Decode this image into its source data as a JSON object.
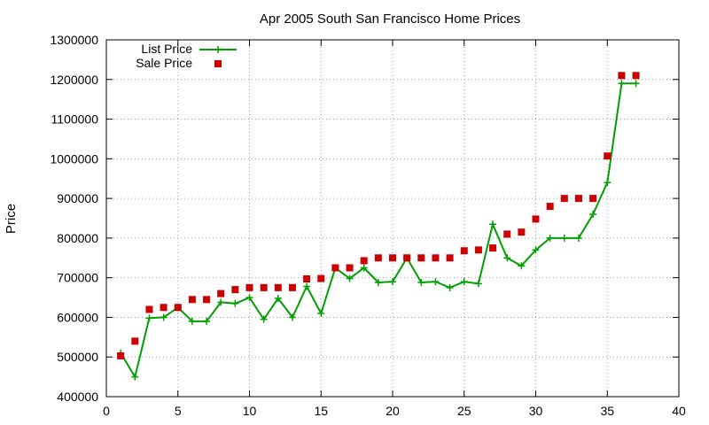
{
  "chart_data": {
    "type": "line",
    "title": "Apr 2005 South San Francisco Home Prices",
    "xlabel": "",
    "ylabel": "Price",
    "xlim": [
      0,
      40
    ],
    "ylim": [
      400000,
      1300000
    ],
    "xticks": [
      "0",
      "5",
      "10",
      "15",
      "20",
      "25",
      "30",
      "35",
      "40"
    ],
    "yticks": [
      "400000",
      "500000",
      "600000",
      "700000",
      "800000",
      "900000",
      "1000000",
      "1100000",
      "1200000",
      "1300000"
    ],
    "grid": true,
    "legend_position": "top-left",
    "series": [
      {
        "name": "List Price",
        "style": "line-with-plus-markers",
        "color": "#00a000",
        "x": [
          1,
          2,
          3,
          4,
          5,
          6,
          7,
          8,
          9,
          10,
          11,
          12,
          13,
          14,
          15,
          16,
          17,
          18,
          19,
          20,
          21,
          22,
          23,
          24,
          25,
          26,
          27,
          28,
          29,
          30,
          31,
          32,
          33,
          34,
          35,
          36,
          37
        ],
        "y": [
          510000,
          450000,
          598000,
          600000,
          625000,
          590000,
          590000,
          638000,
          635000,
          650000,
          595000,
          648000,
          600000,
          678000,
          610000,
          725000,
          698000,
          725000,
          688000,
          690000,
          750000,
          688000,
          690000,
          675000,
          690000,
          685000,
          835000,
          750000,
          730000,
          770000,
          800000,
          800000,
          800000,
          860000,
          940000,
          1190000,
          1190000
        ]
      },
      {
        "name": "Sale Price",
        "style": "square-markers",
        "color": "#cc0000",
        "x": [
          1,
          2,
          3,
          4,
          5,
          6,
          7,
          8,
          9,
          10,
          11,
          12,
          13,
          14,
          15,
          16,
          17,
          18,
          19,
          20,
          21,
          22,
          23,
          24,
          25,
          26,
          27,
          28,
          29,
          30,
          31,
          32,
          33,
          34,
          35,
          36,
          37
        ],
        "y": [
          503000,
          540000,
          620000,
          625000,
          625000,
          645000,
          645000,
          660000,
          670000,
          675000,
          675000,
          675000,
          675000,
          697000,
          698000,
          725000,
          725000,
          743000,
          750000,
          750000,
          750000,
          750000,
          750000,
          750000,
          768000,
          770000,
          775000,
          810000,
          815000,
          848000,
          880000,
          900000,
          900000,
          900000,
          1007000,
          1210000,
          1210000
        ]
      }
    ]
  }
}
